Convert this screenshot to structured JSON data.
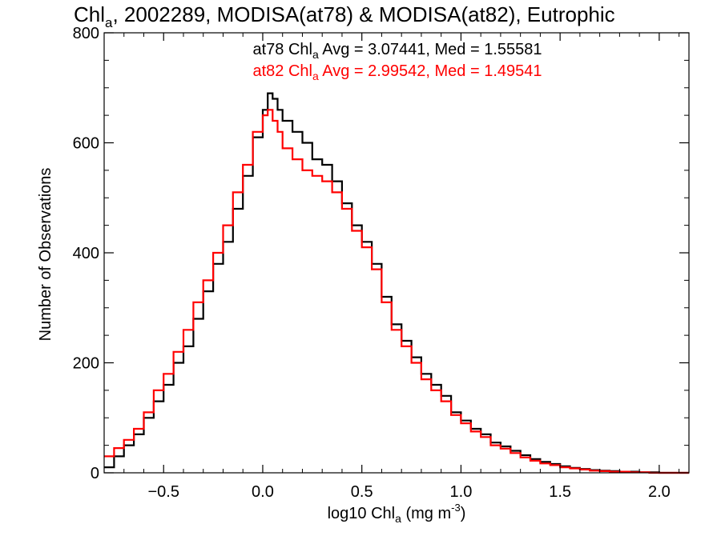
{
  "chart_data": {
    "type": "line",
    "title": {
      "prefix": "Chl",
      "sub": "a",
      "suffix": ", 2002289, MODISA(at78) & MODISA(at82), Eutrophic"
    },
    "xlabel": {
      "prefix": "log10 Chl",
      "sub": "a",
      "mid": " (mg m",
      "sup": "-3",
      "suffix": ")"
    },
    "ylabel": "Number of Observations",
    "xlim": [
      -0.8,
      2.15
    ],
    "ylim": [
      0,
      800
    ],
    "x_ticks": [
      -0.5,
      0.0,
      0.5,
      1.0,
      1.5,
      2.0
    ],
    "x_tick_labels": [
      "−0.5",
      "0.0",
      "0.5",
      "1.0",
      "1.5",
      "2.0"
    ],
    "y_ticks": [
      0,
      200,
      400,
      600,
      800
    ],
    "y_tick_labels": [
      "0",
      "200",
      "400",
      "600",
      "800"
    ],
    "grid": false,
    "step": true,
    "annotations": [
      {
        "prefix": "at78 Chl",
        "sub": "a",
        "suffix": " Avg = 3.07441, Med = 1.55581",
        "color": "#000000"
      },
      {
        "prefix": "at82 Chl",
        "sub": "a",
        "suffix": " Avg = 2.99542, Med = 1.49541",
        "color": "#ff0000"
      }
    ],
    "x": [
      -0.8,
      -0.75,
      -0.7,
      -0.65,
      -0.6,
      -0.55,
      -0.5,
      -0.45,
      -0.4,
      -0.35,
      -0.3,
      -0.25,
      -0.2,
      -0.15,
      -0.1,
      -0.05,
      0.0,
      0.025,
      0.05,
      0.075,
      0.1,
      0.15,
      0.2,
      0.25,
      0.3,
      0.35,
      0.4,
      0.45,
      0.5,
      0.55,
      0.6,
      0.65,
      0.7,
      0.75,
      0.8,
      0.85,
      0.9,
      0.95,
      1.0,
      1.05,
      1.1,
      1.15,
      1.2,
      1.25,
      1.3,
      1.35,
      1.4,
      1.45,
      1.5,
      1.55,
      1.6,
      1.65,
      1.7,
      1.75,
      1.8,
      1.85,
      1.9,
      1.95,
      2.0,
      2.05,
      2.1,
      2.15
    ],
    "series": [
      {
        "color": "#000000",
        "values": [
          10,
          30,
          50,
          70,
          100,
          130,
          160,
          200,
          230,
          280,
          330,
          380,
          420,
          480,
          540,
          610,
          660,
          690,
          680,
          660,
          640,
          620,
          600,
          570,
          560,
          530,
          490,
          450,
          420,
          380,
          320,
          270,
          240,
          210,
          180,
          160,
          140,
          110,
          95,
          80,
          70,
          55,
          48,
          40,
          32,
          25,
          20,
          16,
          12,
          9,
          7,
          5,
          4,
          3,
          2,
          2,
          1,
          1,
          0,
          0,
          0,
          0
        ]
      },
      {
        "color": "#ff0000",
        "values": [
          30,
          45,
          60,
          80,
          110,
          150,
          180,
          220,
          260,
          310,
          350,
          400,
          450,
          510,
          560,
          620,
          650,
          660,
          640,
          620,
          590,
          570,
          550,
          540,
          530,
          510,
          480,
          440,
          410,
          370,
          310,
          260,
          230,
          200,
          170,
          150,
          130,
          105,
          90,
          75,
          65,
          50,
          44,
          36,
          28,
          22,
          17,
          14,
          10,
          8,
          6,
          4,
          3,
          2,
          2,
          1,
          1,
          0,
          0,
          0,
          0,
          0
        ]
      }
    ]
  }
}
